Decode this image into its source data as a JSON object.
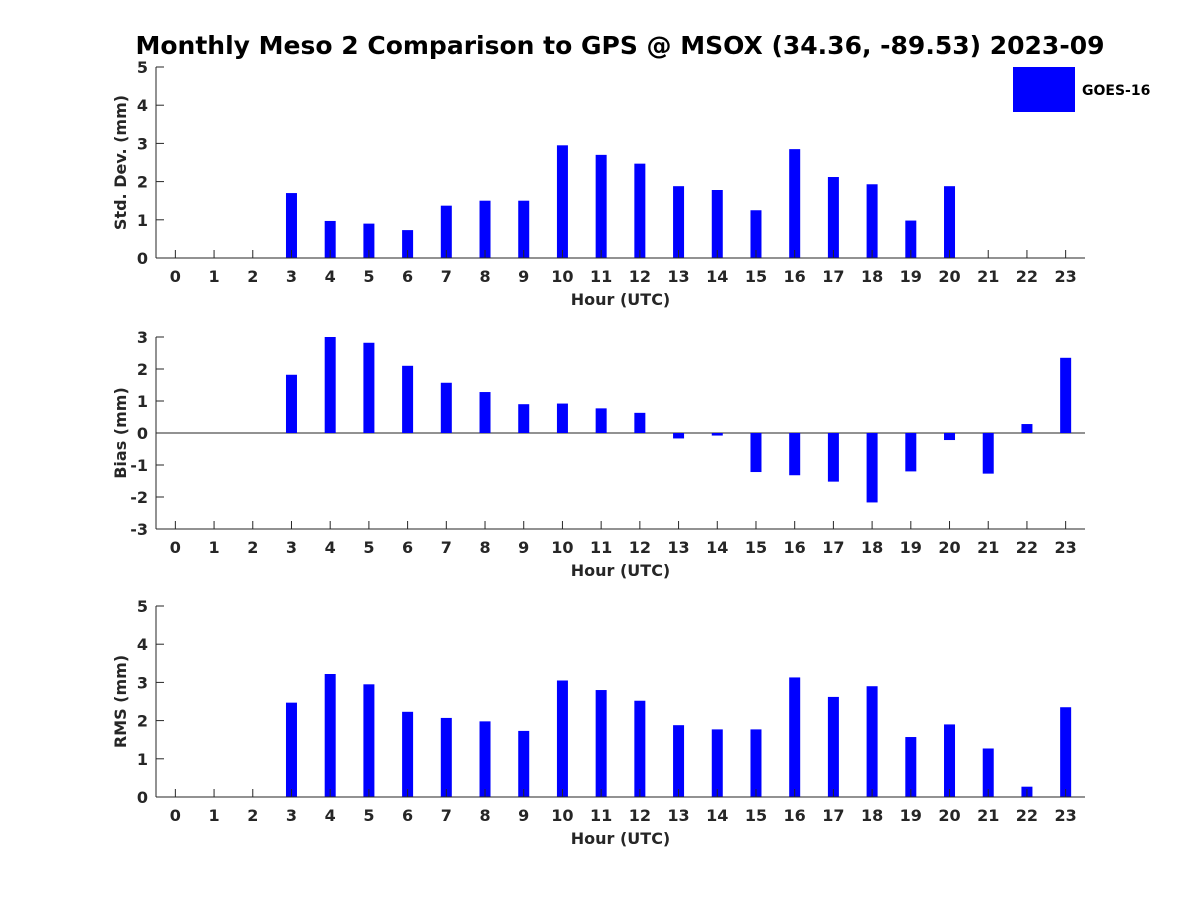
{
  "chart_data": {
    "type": "bar",
    "title": "Monthly Meso 2 Comparison to GPS @ MSOX (34.36, -89.53) 2023-09",
    "color": "#0000ff",
    "legend": {
      "label": "GOES-16",
      "placement": "top-right"
    },
    "panels": [
      {
        "ylabel": "Std. Dev. (mm)",
        "xlabel": "Hour (UTC)",
        "xlim": [
          -0.5,
          23.5
        ],
        "ylim": [
          0,
          5
        ],
        "yticks": [
          0,
          1,
          2,
          3,
          4,
          5
        ],
        "x": [
          0,
          1,
          2,
          3,
          4,
          5,
          6,
          7,
          8,
          9,
          10,
          11,
          12,
          13,
          14,
          15,
          16,
          17,
          18,
          19,
          20,
          21,
          22,
          23
        ],
        "values": [
          null,
          null,
          null,
          1.7,
          0.97,
          0.9,
          0.73,
          1.37,
          1.5,
          1.5,
          2.95,
          2.7,
          2.47,
          1.88,
          1.78,
          1.25,
          2.85,
          2.12,
          1.93,
          0.98,
          1.88,
          null,
          null,
          null
        ]
      },
      {
        "ylabel": "Bias (mm)",
        "xlabel": "Hour (UTC)",
        "xlim": [
          -0.5,
          23.5
        ],
        "ylim": [
          -3,
          3
        ],
        "yticks": [
          -3,
          -2,
          -1,
          0,
          1,
          2,
          3
        ],
        "x": [
          0,
          1,
          2,
          3,
          4,
          5,
          6,
          7,
          8,
          9,
          10,
          11,
          12,
          13,
          14,
          15,
          16,
          17,
          18,
          19,
          20,
          21,
          22,
          23
        ],
        "values": [
          null,
          null,
          null,
          1.82,
          3.0,
          2.82,
          2.1,
          1.57,
          1.28,
          0.9,
          0.92,
          0.77,
          0.63,
          -0.17,
          -0.08,
          -1.22,
          -1.32,
          -1.52,
          -2.17,
          -1.2,
          -0.22,
          -1.27,
          0.28,
          2.35
        ],
        "zero_line": true
      },
      {
        "ylabel": "RMS (mm)",
        "xlabel": "Hour (UTC)",
        "xlim": [
          -0.5,
          23.5
        ],
        "ylim": [
          0,
          5
        ],
        "yticks": [
          0,
          1,
          2,
          3,
          4,
          5
        ],
        "x": [
          0,
          1,
          2,
          3,
          4,
          5,
          6,
          7,
          8,
          9,
          10,
          11,
          12,
          13,
          14,
          15,
          16,
          17,
          18,
          19,
          20,
          21,
          22,
          23
        ],
        "values": [
          null,
          null,
          null,
          2.47,
          3.22,
          2.95,
          2.23,
          2.07,
          1.98,
          1.73,
          3.05,
          2.8,
          2.52,
          1.88,
          1.77,
          1.77,
          3.13,
          2.62,
          2.9,
          1.57,
          1.9,
          1.27,
          0.27,
          2.35
        ]
      }
    ]
  }
}
